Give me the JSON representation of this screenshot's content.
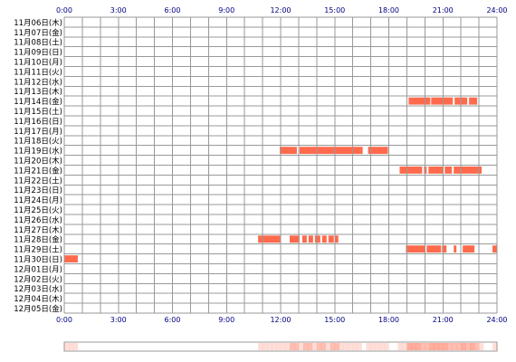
{
  "chart_data": {
    "type": "timeline",
    "x_ticks": [
      "0:00",
      "3:00",
      "6:00",
      "9:00",
      "12:00",
      "15:00",
      "18:00",
      "21:00",
      "24:00"
    ],
    "x_range_hours": [
      0,
      24
    ],
    "grid": true,
    "rows": [
      {
        "label": "11月06日(木)",
        "segments": []
      },
      {
        "label": "11月07日(金)",
        "segments": []
      },
      {
        "label": "11月08日(土)",
        "segments": []
      },
      {
        "label": "11月09日(日)",
        "segments": []
      },
      {
        "label": "11月10日(月)",
        "segments": []
      },
      {
        "label": "11月11日(火)",
        "segments": []
      },
      {
        "label": "11月12日(水)",
        "segments": []
      },
      {
        "label": "11月13日(木)",
        "segments": []
      },
      {
        "label": "11月14日(金)",
        "segments": [
          [
            19.1,
            20.3
          ],
          [
            20.35,
            21.55
          ],
          [
            21.65,
            22.35
          ],
          [
            22.45,
            22.9
          ]
        ]
      },
      {
        "label": "11月15日(土)",
        "segments": []
      },
      {
        "label": "11月16日(日)",
        "segments": []
      },
      {
        "label": "11月17日(月)",
        "segments": []
      },
      {
        "label": "11月18日(火)",
        "segments": []
      },
      {
        "label": "11月19日(水)",
        "segments": [
          [
            11.95,
            12.9
          ],
          [
            13.05,
            16.55
          ],
          [
            16.85,
            17.95
          ]
        ]
      },
      {
        "label": "11月20日(木)",
        "segments": []
      },
      {
        "label": "11月21日(金)",
        "segments": [
          [
            18.6,
            19.85
          ],
          [
            19.95,
            20.1
          ],
          [
            20.2,
            21.0
          ],
          [
            21.1,
            21.5
          ],
          [
            21.6,
            23.15
          ]
        ]
      },
      {
        "label": "11月22日(土)",
        "segments": []
      },
      {
        "label": "11月23日(日)",
        "segments": []
      },
      {
        "label": "11月24日(月)",
        "segments": []
      },
      {
        "label": "11月25日(火)",
        "segments": []
      },
      {
        "label": "11月26日(水)",
        "segments": []
      },
      {
        "label": "11月27日(木)",
        "segments": []
      },
      {
        "label": "11月28日(金)",
        "segments": [
          [
            10.75,
            12.0
          ],
          [
            12.5,
            13.05
          ],
          [
            13.2,
            13.45
          ],
          [
            13.55,
            13.8
          ],
          [
            13.9,
            14.2
          ],
          [
            14.3,
            14.55
          ],
          [
            14.65,
            14.95
          ],
          [
            15.0,
            15.2
          ]
        ]
      },
      {
        "label": "11月29日(土)",
        "segments": [
          [
            18.95,
            20.0
          ],
          [
            20.1,
            20.9
          ],
          [
            20.95,
            21.2
          ],
          [
            21.6,
            21.75
          ],
          [
            22.1,
            22.75
          ],
          [
            23.75,
            24.0
          ]
        ]
      },
      {
        "label": "11月30日(日)",
        "segments": [
          [
            0.0,
            0.75
          ]
        ]
      },
      {
        "label": "12月01日(月)",
        "segments": []
      },
      {
        "label": "12月02日(火)",
        "segments": []
      },
      {
        "label": "12月03日(水)",
        "segments": []
      },
      {
        "label": "12月04日(木)",
        "segments": []
      },
      {
        "label": "12月05日(金)",
        "segments": []
      }
    ],
    "bar_color": "#ff6a4d",
    "gap_color": "#ffffff",
    "grid_color": "#999999",
    "tick_color": "#000080"
  }
}
